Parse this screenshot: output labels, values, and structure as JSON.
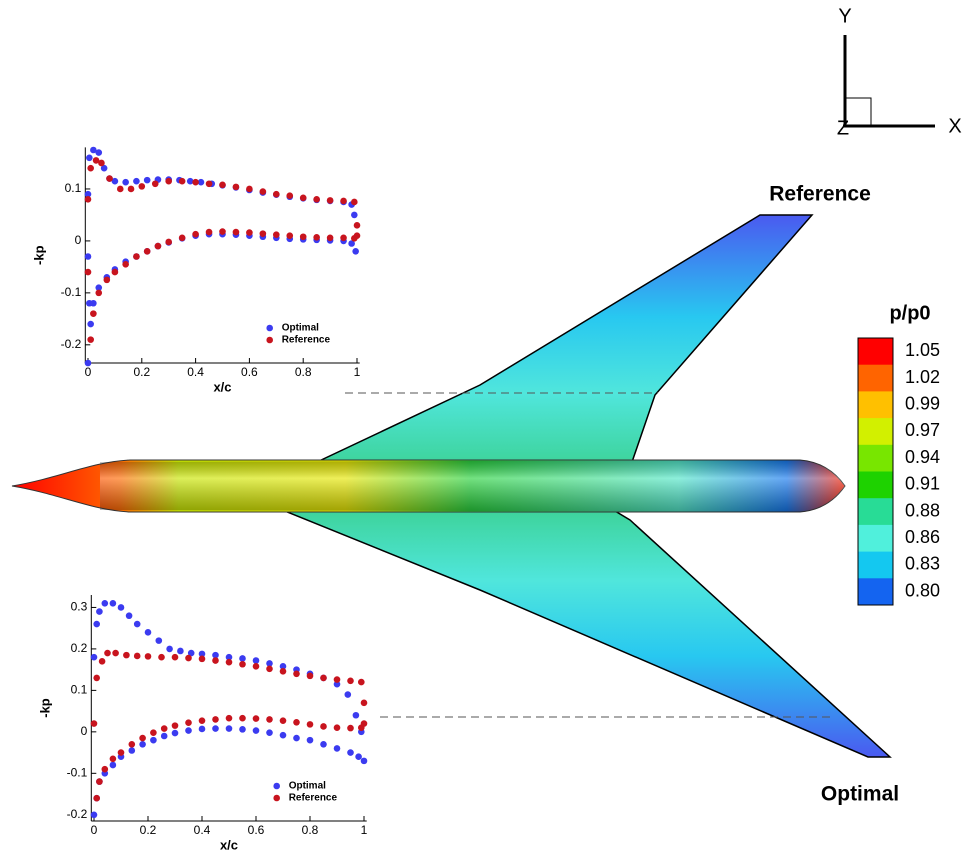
{
  "chart_data": [
    {
      "type": "scatter",
      "xlabel": "x/c",
      "ylabel": "-kp",
      "xlim": [
        -0.01,
        1.01
      ],
      "ylim": [
        -0.235,
        0.18
      ],
      "xticks": [
        0,
        0.2,
        0.4,
        0.6,
        0.8,
        1
      ],
      "yticks": [
        -0.2,
        -0.1,
        0,
        0.1
      ],
      "legend": "lower right",
      "series": [
        {
          "name": "Optimal",
          "color": "#3b3bf0",
          "x": [
            0,
            0.005,
            0.02,
            0.04,
            0.06,
            0.08,
            0.1,
            0.14,
            0.18,
            0.22,
            0.26,
            0.3,
            0.34,
            0.38,
            0.42,
            0.46,
            0.5,
            0.55,
            0.6,
            0.65,
            0.7,
            0.75,
            0.8,
            0.85,
            0.9,
            0.95,
            0.98,
            0.99,
            0,
            0.005,
            0.01,
            0.02,
            0.04,
            0.07,
            0.1,
            0.14,
            0.18,
            0.22,
            0.26,
            0.3,
            0.35,
            0.4,
            0.45,
            0.5,
            0.55,
            0.6,
            0.65,
            0.7,
            0.75,
            0.8,
            0.85,
            0.9,
            0.95,
            0.98,
            0.995,
            0
          ],
          "values": [
            0.09,
            0.16,
            0.175,
            0.17,
            0.14,
            0.12,
            0.115,
            0.113,
            0.115,
            0.117,
            0.118,
            0.118,
            0.117,
            0.115,
            0.113,
            0.11,
            0.107,
            0.103,
            0.098,
            0.093,
            0.089,
            0.085,
            0.082,
            0.079,
            0.077,
            0.075,
            0.07,
            0.05,
            -0.03,
            -0.12,
            -0.16,
            -0.12,
            -0.09,
            -0.07,
            -0.055,
            -0.04,
            -0.03,
            -0.02,
            -0.01,
            -0.003,
            0.005,
            0.01,
            0.013,
            0.013,
            0.012,
            0.01,
            0.008,
            0.006,
            0.004,
            0.003,
            0.002,
            0.001,
            0,
            -0.005,
            -0.02,
            -0.235
          ]
        },
        {
          "name": "Reference",
          "color": "#c8141e",
          "x": [
            0,
            0.01,
            0.03,
            0.05,
            0.08,
            0.12,
            0.16,
            0.2,
            0.25,
            0.3,
            0.35,
            0.4,
            0.45,
            0.5,
            0.55,
            0.6,
            0.65,
            0.7,
            0.75,
            0.8,
            0.85,
            0.9,
            0.95,
            0.99,
            1,
            0,
            0.01,
            0.02,
            0.04,
            0.07,
            0.1,
            0.14,
            0.18,
            0.22,
            0.26,
            0.3,
            0.35,
            0.4,
            0.45,
            0.5,
            0.55,
            0.6,
            0.65,
            0.7,
            0.75,
            0.8,
            0.85,
            0.9,
            0.95,
            0.99,
            1
          ],
          "values": [
            0.08,
            0.14,
            0.155,
            0.15,
            0.12,
            0.1,
            0.1,
            0.105,
            0.11,
            0.115,
            0.115,
            0.113,
            0.11,
            0.108,
            0.104,
            0.1,
            0.095,
            0.09,
            0.087,
            0.083,
            0.08,
            0.078,
            0.077,
            0.075,
            0.03,
            -0.06,
            -0.19,
            -0.14,
            -0.1,
            -0.075,
            -0.06,
            -0.045,
            -0.03,
            -0.02,
            -0.01,
            -0.002,
            0.006,
            0.013,
            0.017,
            0.018,
            0.017,
            0.016,
            0.014,
            0.012,
            0.01,
            0.008,
            0.007,
            0.006,
            0.006,
            0.005,
            0.01
          ]
        }
      ]
    },
    {
      "type": "scatter",
      "xlabel": "x/c",
      "ylabel": "-kp",
      "xlim": [
        -0.01,
        1.01
      ],
      "ylim": [
        -0.215,
        0.33
      ],
      "xticks": [
        0,
        0.2,
        0.4,
        0.6,
        0.8,
        1
      ],
      "yticks": [
        -0.2,
        -0.1,
        0,
        0.1,
        0.2,
        0.3
      ],
      "legend": "lower right",
      "series": [
        {
          "name": "Optimal",
          "color": "#3b3bf0",
          "x": [
            0,
            0.01,
            0.02,
            0.04,
            0.07,
            0.1,
            0.13,
            0.16,
            0.2,
            0.24,
            0.28,
            0.32,
            0.36,
            0.4,
            0.45,
            0.5,
            0.55,
            0.6,
            0.65,
            0.7,
            0.75,
            0.8,
            0.85,
            0.9,
            0.94,
            0.97,
            0.99,
            0,
            0.01,
            0.02,
            0.04,
            0.07,
            0.1,
            0.14,
            0.18,
            0.22,
            0.26,
            0.3,
            0.35,
            0.4,
            0.45,
            0.5,
            0.55,
            0.6,
            0.65,
            0.7,
            0.75,
            0.8,
            0.85,
            0.9,
            0.95,
            0.98,
            1
          ],
          "values": [
            0.18,
            0.26,
            0.29,
            0.31,
            0.31,
            0.3,
            0.28,
            0.26,
            0.24,
            0.22,
            0.2,
            0.195,
            0.19,
            0.188,
            0.185,
            0.18,
            0.177,
            0.172,
            0.165,
            0.158,
            0.15,
            0.14,
            0.13,
            0.115,
            0.09,
            0.04,
            0,
            -0.2,
            -0.16,
            -0.12,
            -0.1,
            -0.08,
            -0.06,
            -0.045,
            -0.03,
            -0.02,
            -0.01,
            -0.003,
            0.003,
            0.007,
            0.008,
            0.008,
            0.006,
            0.003,
            -0.002,
            -0.008,
            -0.015,
            -0.02,
            -0.03,
            -0.04,
            -0.05,
            -0.06,
            -0.07
          ]
        },
        {
          "name": "Reference",
          "color": "#c8141e",
          "x": [
            0,
            0.01,
            0.03,
            0.05,
            0.08,
            0.12,
            0.16,
            0.2,
            0.25,
            0.3,
            0.35,
            0.4,
            0.45,
            0.5,
            0.55,
            0.6,
            0.65,
            0.7,
            0.75,
            0.8,
            0.85,
            0.9,
            0.95,
            0.99,
            1,
            0.01,
            0.02,
            0.04,
            0.07,
            0.1,
            0.14,
            0.18,
            0.22,
            0.26,
            0.3,
            0.35,
            0.4,
            0.45,
            0.5,
            0.55,
            0.6,
            0.65,
            0.7,
            0.75,
            0.8,
            0.85,
            0.9,
            0.95,
            0.99,
            1
          ],
          "values": [
            0.02,
            0.13,
            0.17,
            0.19,
            0.19,
            0.185,
            0.183,
            0.182,
            0.18,
            0.18,
            0.178,
            0.176,
            0.172,
            0.168,
            0.163,
            0.158,
            0.152,
            0.146,
            0.14,
            0.135,
            0.13,
            0.126,
            0.123,
            0.12,
            0.07,
            -0.16,
            -0.12,
            -0.09,
            -0.065,
            -0.05,
            -0.03,
            -0.015,
            -0.002,
            0.008,
            0.015,
            0.022,
            0.027,
            0.03,
            0.033,
            0.033,
            0.032,
            0.03,
            0.027,
            0.023,
            0.018,
            0.013,
            0.01,
            0.009,
            0.01,
            0.02
          ]
        }
      ]
    }
  ],
  "figure": {
    "upper_label": "Reference",
    "lower_label": "Optimal",
    "axis_y": "Y",
    "axis_x": "X",
    "axis_z": "Z"
  },
  "colorbar": {
    "title": "p/p0",
    "levels": [
      1.05,
      1.02,
      0.99,
      0.97,
      0.94,
      0.91,
      0.88,
      0.86,
      0.83,
      {
        "value": 0.8,
        "label": "0.80"
      }
    ],
    "colors": [
      "#ff0000",
      "#ff6400",
      "#ffc000",
      "#d2f000",
      "#78e600",
      "#1ed200",
      "#28dc96",
      "#50f0dc",
      "#14c8f0",
      "#1464f0"
    ]
  }
}
